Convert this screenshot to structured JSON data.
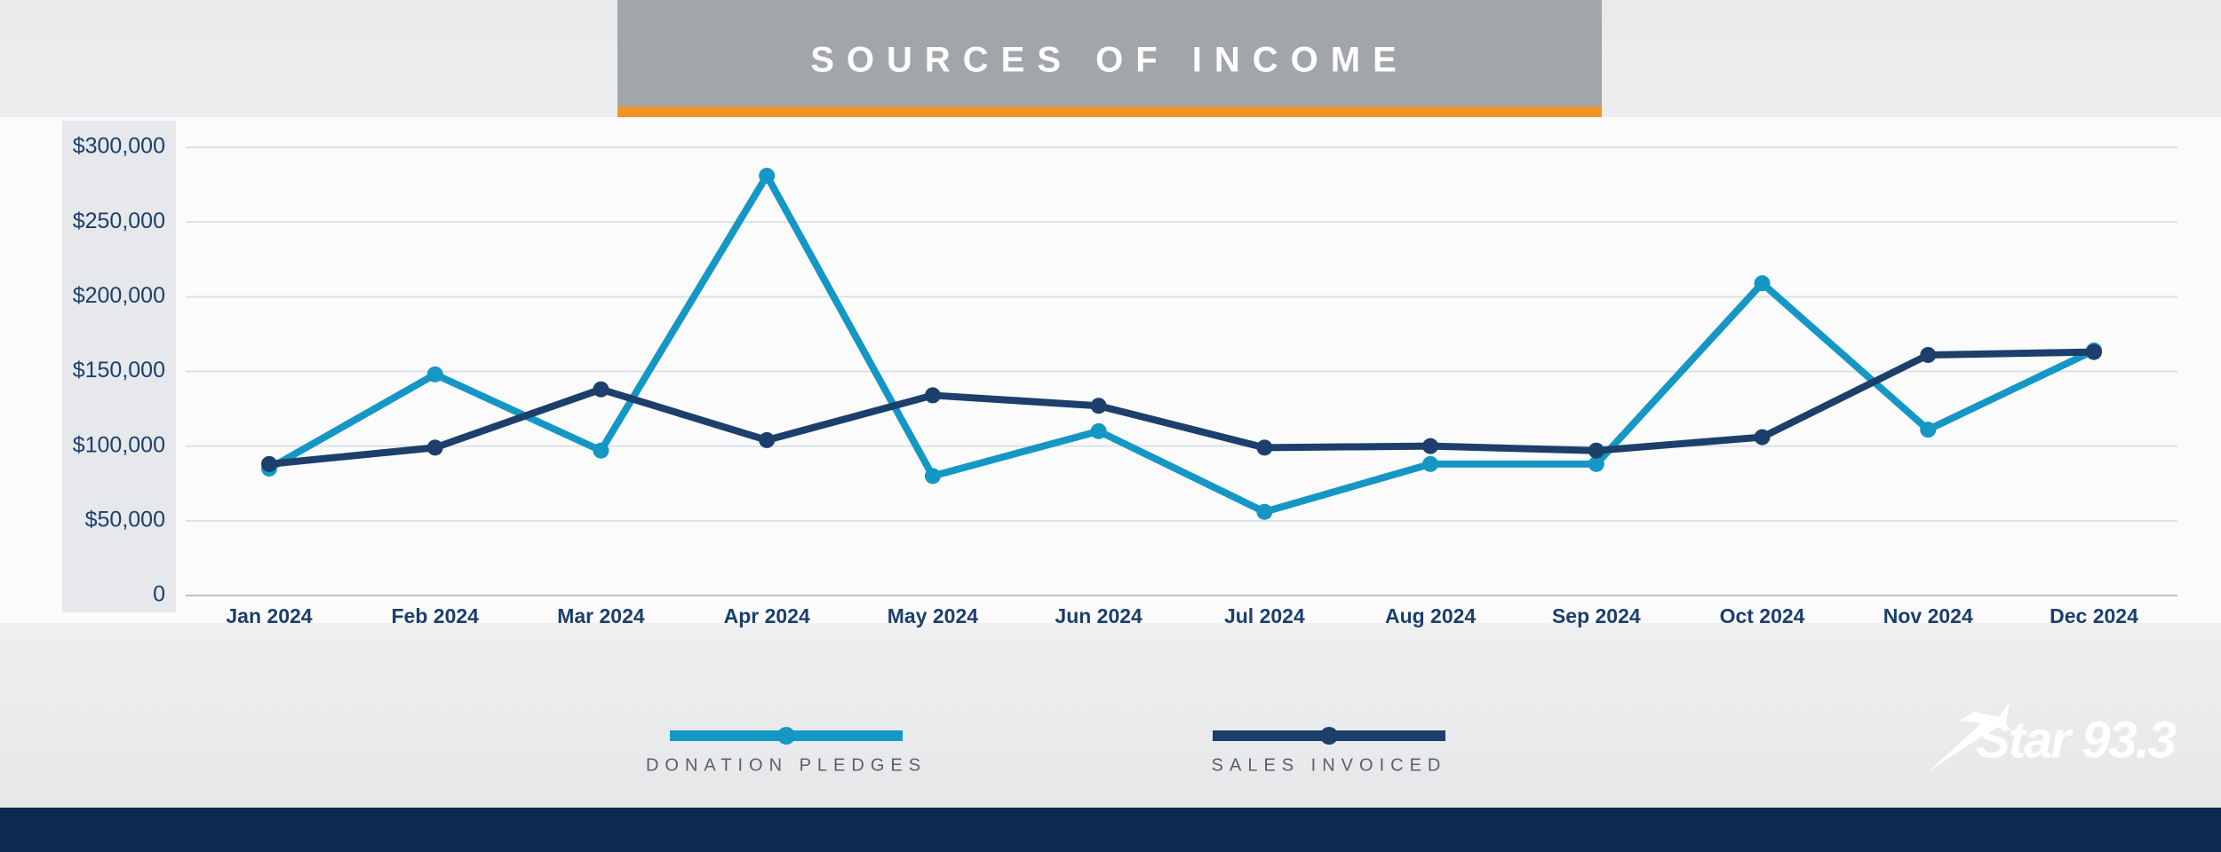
{
  "chart_data": {
    "type": "line",
    "title": "SOURCES OF INCOME",
    "categories": [
      "Jan 2024",
      "Feb 2024",
      "Mar 2024",
      "Apr 2024",
      "May 2024",
      "Jun 2024",
      "Jul 2024",
      "Aug 2024",
      "Sep 2024",
      "Oct 2024",
      "Nov 2024",
      "Dec 2024"
    ],
    "series": [
      {
        "name": "DONATION PLEDGES",
        "color": "#1597c5",
        "values": [
          85000,
          148000,
          97000,
          281000,
          80000,
          110000,
          56000,
          88000,
          88000,
          209000,
          111000,
          164000
        ]
      },
      {
        "name": "SALES INVOICED",
        "color": "#1c3f6b",
        "values": [
          88000,
          99000,
          138000,
          104000,
          134000,
          127000,
          99000,
          100000,
          97000,
          106000,
          161000,
          163000
        ]
      }
    ],
    "ylim": [
      0,
      300000
    ],
    "yticks": [
      0,
      {
        "value": 50000,
        "label": "$50,000"
      },
      {
        "value": 100000,
        "label": "$100,000"
      },
      {
        "value": 150000,
        "label": "$150,000"
      },
      {
        "value": 200000,
        "label": "$200,000"
      },
      {
        "value": 250000,
        "label": "$250,000"
      },
      {
        "value": 300000,
        "label": "$300,000"
      }
    ],
    "grid": true
  },
  "brand": "Star 93.3"
}
